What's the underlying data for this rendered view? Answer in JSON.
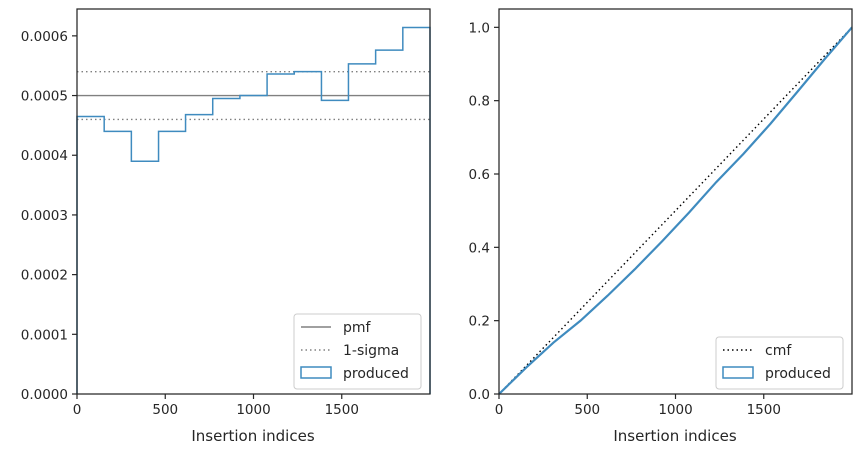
{
  "chart_data": [
    {
      "type": "histogram",
      "xlabel": "Insertion indices",
      "ylabel": "",
      "xlim": [
        0,
        2000
      ],
      "ylim": [
        0,
        0.000645
      ],
      "xticks": [
        {
          "value": 0,
          "label": "0"
        },
        {
          "value": 500,
          "label": "500"
        },
        {
          "value": 1000,
          "label": "1000"
        },
        {
          "value": 1500,
          "label": "1500"
        }
      ],
      "yticks": [
        {
          "value": 0,
          "label": "0.0000"
        },
        {
          "value": 0.0001,
          "label": "0.0001"
        },
        {
          "value": 0.0002,
          "label": "0.0002"
        },
        {
          "value": 0.0003,
          "label": "0.0003"
        },
        {
          "value": 0.0004,
          "label": "0.0004"
        },
        {
          "value": 0.0005,
          "label": "0.0005"
        },
        {
          "value": 0.0006,
          "label": "0.0006"
        }
      ],
      "hlines": [
        {
          "name": "pmf",
          "value": 0.0005,
          "style": "solid",
          "color": "#808080"
        },
        {
          "name": "1-sigma",
          "value": 0.00054,
          "style": "dotted",
          "color": "#808080"
        },
        {
          "name": "1-sigma",
          "value": 0.00046,
          "style": "dotted",
          "color": "#808080"
        }
      ],
      "bins": [
        0,
        154,
        308,
        462,
        615,
        769,
        923,
        1077,
        1231,
        1385,
        1538,
        1692,
        1846,
        2000
      ],
      "values": [
        0.000465,
        0.00044,
        0.00039,
        0.00044,
        0.000468,
        0.000495,
        0.0005,
        0.000536,
        0.00054,
        0.000492,
        0.000553,
        0.000576,
        0.000614
      ],
      "series": [
        {
          "name": "produced",
          "color": "#3f8bbf"
        }
      ],
      "legend": {
        "placement": "lower right",
        "entries": [
          {
            "label": "pmf",
            "kind": "solid-line",
            "color": "#808080"
          },
          {
            "label": "1-sigma",
            "kind": "dotted-line",
            "color": "#808080"
          },
          {
            "label": "produced",
            "kind": "step-patch",
            "color": "#3f8bbf"
          }
        ]
      },
      "grid": false
    },
    {
      "type": "line",
      "xlabel": "Insertion indices",
      "ylabel": "",
      "xlim": [
        0,
        2000
      ],
      "ylim": [
        0,
        1.05
      ],
      "xticks": [
        {
          "value": 0,
          "label": "0"
        },
        {
          "value": 500,
          "label": "500"
        },
        {
          "value": 1000,
          "label": "1000"
        },
        {
          "value": 1500,
          "label": "1500"
        }
      ],
      "yticks": [
        {
          "value": 0,
          "label": "0.0"
        },
        {
          "value": 0.2,
          "label": "0.2"
        },
        {
          "value": 0.4,
          "label": "0.4"
        },
        {
          "value": 0.6,
          "label": "0.6"
        },
        {
          "value": 0.8,
          "label": "0.8"
        },
        {
          "value": 1.0,
          "label": "1.0"
        }
      ],
      "series": [
        {
          "name": "cmf",
          "style": "dotted",
          "color": "#000000",
          "x": [
            0,
            2000
          ],
          "y": [
            0,
            1.0
          ]
        },
        {
          "name": "produced",
          "style": "solid",
          "color": "#3f8bbf",
          "x": [
            0,
            154,
            308,
            462,
            615,
            769,
            923,
            1077,
            1231,
            1385,
            1538,
            1692,
            1846,
            2000
          ],
          "y": [
            0,
            0.072,
            0.14,
            0.2,
            0.268,
            0.34,
            0.416,
            0.495,
            0.578,
            0.655,
            0.737,
            0.825,
            0.914,
            1.0
          ]
        }
      ],
      "legend": {
        "placement": "lower right",
        "entries": [
          {
            "label": "cmf",
            "kind": "dotted-line",
            "color": "#000000"
          },
          {
            "label": "produced",
            "kind": "step-patch",
            "color": "#3f8bbf"
          }
        ]
      },
      "grid": false
    }
  ]
}
